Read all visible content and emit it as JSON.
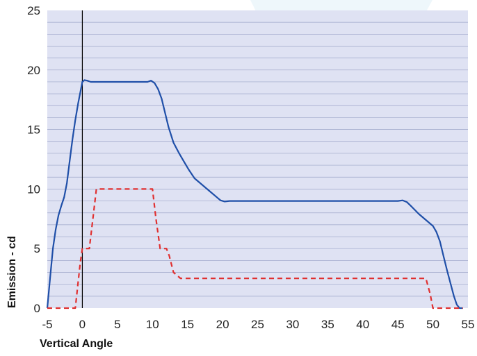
{
  "chart_data": {
    "type": "line",
    "title": "",
    "xlabel": "Vertical Angle",
    "ylabel": "Emission - cd",
    "xlim": [
      -5,
      55
    ],
    "ylim": [
      0,
      25
    ],
    "xticks": [
      -5,
      0,
      5,
      10,
      15,
      20,
      25,
      30,
      35,
      40,
      45,
      50,
      55
    ],
    "yticks": [
      0,
      5,
      10,
      15,
      20,
      25
    ],
    "grid": true,
    "legend": "none",
    "colors": {
      "plot_background": "#dfe2f3",
      "gridline": "#9ea6c9",
      "page_decoration": "#eef7fb"
    },
    "series": [
      {
        "color": "#1f4fa8",
        "style": "solid",
        "x": [
          -5,
          -4.6,
          -4.2,
          -3.8,
          -3.4,
          -3,
          -2.6,
          -2.2,
          -1.8,
          -1.4,
          -1,
          -0.6,
          -0.2,
          0,
          0.3,
          0.7,
          1.2,
          2,
          4,
          6,
          8,
          9.3,
          9.8,
          10.3,
          10.8,
          11.3,
          11.8,
          12.3,
          13,
          13.8,
          14.5,
          15.2,
          16,
          17,
          18,
          19,
          19.7,
          20.3,
          21,
          25,
          30,
          35,
          40,
          45,
          45.7,
          46.3,
          47,
          48,
          49,
          50,
          50.5,
          51,
          51.5,
          52,
          52.5,
          53,
          53.4,
          53.8,
          54.2
        ],
        "y": [
          0,
          2.5,
          5,
          6.6,
          7.8,
          8.6,
          9.3,
          10.5,
          12.4,
          14.2,
          15.8,
          17.2,
          18.4,
          19,
          19.15,
          19.1,
          19,
          19,
          19,
          19,
          19,
          19,
          19.1,
          18.9,
          18.4,
          17.6,
          16.4,
          15.2,
          13.9,
          13,
          12.3,
          11.6,
          10.9,
          10.4,
          9.9,
          9.4,
          9.05,
          8.95,
          9,
          9,
          9,
          9,
          9,
          9,
          9.05,
          8.9,
          8.5,
          7.9,
          7.4,
          6.9,
          6.4,
          5.6,
          4.4,
          3.2,
          2.1,
          1,
          0.3,
          0,
          0
        ]
      },
      {
        "color": "#e03030",
        "style": "dashed",
        "x": [
          -5,
          -1,
          -0.6,
          -0.3,
          0,
          1,
          1.1,
          1.6,
          2,
          6,
          10,
          10.5,
          11.1,
          12,
          12.4,
          13,
          14,
          30,
          49,
          49.6,
          50,
          54,
          54.3
        ],
        "y": [
          0,
          0,
          2.2,
          3.8,
          5,
          5,
          5.5,
          8,
          10,
          10,
          10,
          7.5,
          5,
          5,
          4.4,
          3,
          2.5,
          2.5,
          2.5,
          1.2,
          0,
          0,
          0
        ]
      }
    ]
  }
}
